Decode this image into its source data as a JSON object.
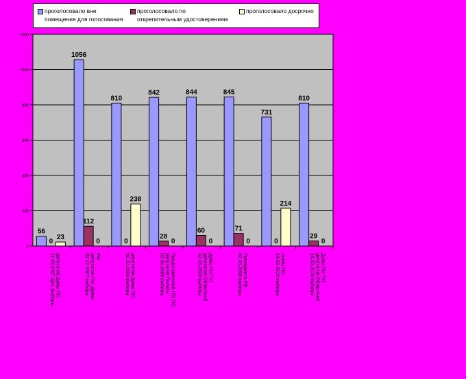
{
  "colors": {
    "background": "#ff00ff",
    "plot_area": "#c0c0c0",
    "series": [
      "#9999ff",
      "#993366",
      "#ffffcc"
    ]
  },
  "chart_data": {
    "type": "bar",
    "categories": [
      [
        "11.03.2007 доп. выборы",
        "депутатов Думы ПО"
      ],
      [
        "02.12.2007 выборы",
        "депутатов Гос. Думы",
        "РФ"
      ],
      [
        "02.03.2008 выборы",
        "депутатов Думы ПО"
      ],
      [
        "02.03.2008 выборы",
        "депутатов Палаты",
        "Представителей ПО ПО"
      ],
      [
        "02.03.2008 выборы",
        "депутатов Областной",
        "Думы ПО ПО"
      ],
      [
        "02.03.2008 выборы",
        "Президента РФ"
      ],
      [
        "14.03.2010 выборы",
        "главы ПО"
      ],
      [
        "14.03.2010 выборы",
        "депутатов Областной",
        "Думы ПО ПО"
      ]
    ],
    "series": [
      {
        "name": "проголосовало вне помещения для голосования",
        "values": [
          56,
          1056,
          810,
          842,
          844,
          845,
          731,
          810
        ]
      },
      {
        "name": "проголосовало по открепительным удостоверениям",
        "values": [
          0,
          112,
          0,
          28,
          60,
          71,
          0,
          29
        ]
      },
      {
        "name": "проголосовало досрочно",
        "values": [
          23,
          0,
          238,
          0,
          0,
          0,
          214,
          0
        ]
      }
    ],
    "ylim": [
      0,
      1200
    ],
    "yticks": [
      0,
      200,
      400,
      600,
      800,
      1000,
      1200
    ],
    "grid": true,
    "legend_position": "top"
  },
  "legend": {
    "items": [
      "проголосовало вне\nпомещения для голосования",
      "проголосовало по\nоткрепительным удостоверениям",
      "проголосовало досрочно"
    ]
  }
}
